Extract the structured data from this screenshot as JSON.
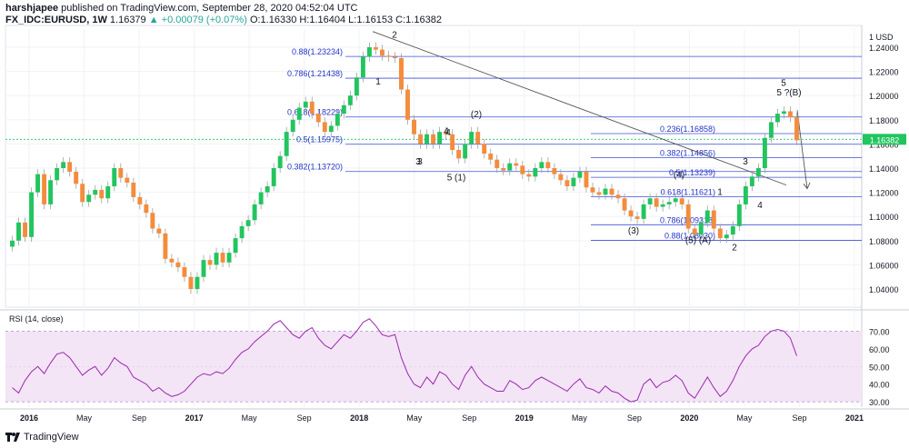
{
  "header": {
    "publisher": "harshjapee",
    "published_text": "published on TradingView.com, September 28, 2020 04:52:04 UTC",
    "symbol": "FX_IDC:EURUSD, 1W",
    "last": "1.16379",
    "change_text": "▲ +0.00079 (+0.07%)",
    "ohlc_label": "O:1.16330 H:1.16404 L:1.16153 C:1.16382"
  },
  "footer": {
    "brand": "TradingView"
  },
  "chart_data": [
    {
      "type": "candlestick",
      "title": "FX_IDC:EURUSD, 1W",
      "price_axis": {
        "unit_label": "1 USD",
        "ticks": [
          "1.24000",
          "1.22000",
          "1.20000",
          "1.18000",
          "1.16000",
          "1.14000",
          "1.12000",
          "1.10000",
          "1.08000",
          "1.06000",
          "1.04000"
        ],
        "range": [
          1.025,
          1.255
        ]
      },
      "time_axis": {
        "labels": [
          "2016",
          "May",
          "Sep",
          "2017",
          "May",
          "Sep",
          "2018",
          "May",
          "Sep",
          "2019",
          "May",
          "Sep",
          "2020",
          "May",
          "Sep",
          "2021"
        ]
      },
      "current_price_label": "1.16382",
      "up_color": "#22c55e",
      "down_color": "#f48c3c",
      "close_series": [
        1.08,
        1.095,
        1.083,
        1.12,
        1.135,
        1.11,
        1.13,
        1.14,
        1.145,
        1.137,
        1.127,
        1.112,
        1.118,
        1.122,
        1.115,
        1.125,
        1.14,
        1.132,
        1.128,
        1.116,
        1.11,
        1.103,
        1.09,
        1.086,
        1.065,
        1.062,
        1.058,
        1.05,
        1.04,
        1.05,
        1.064,
        1.06,
        1.07,
        1.062,
        1.07,
        1.082,
        1.092,
        1.097,
        1.11,
        1.12,
        1.125,
        1.14,
        1.15,
        1.17,
        1.18,
        1.19,
        1.195,
        1.185,
        1.178,
        1.17,
        1.175,
        1.185,
        1.192,
        1.2,
        1.215,
        1.232,
        1.24,
        1.238,
        1.233,
        1.232,
        1.231,
        1.205,
        1.18,
        1.168,
        1.16,
        1.168,
        1.16,
        1.17,
        1.168,
        1.155,
        1.148,
        1.16,
        1.17,
        1.16,
        1.152,
        1.147,
        1.14,
        1.138,
        1.144,
        1.142,
        1.135,
        1.133,
        1.14,
        1.145,
        1.14,
        1.135,
        1.13,
        1.125,
        1.132,
        1.137,
        1.124,
        1.12,
        1.118,
        1.123,
        1.118,
        1.115,
        1.105,
        1.1,
        1.098,
        1.11,
        1.115,
        1.108,
        1.11,
        1.112,
        1.115,
        1.11,
        1.09,
        1.085,
        1.095,
        1.105,
        1.09,
        1.082,
        1.085,
        1.092,
        1.11,
        1.125,
        1.133,
        1.14,
        1.165,
        1.178,
        1.185,
        1.187,
        1.182,
        1.163
      ],
      "fib_levels": [
        {
          "ratio": "0.88",
          "price": "1.23234",
          "label": "0.88(1.23234)"
        },
        {
          "ratio": "0.786",
          "price": "1.21438",
          "label": "0.786(1.21438)"
        },
        {
          "ratio": "0.618",
          "price": "1.18229",
          "label": "0.618(1.18229)"
        },
        {
          "ratio": "0.5",
          "price": "1.15975",
          "label": "0.5(1.15975)"
        },
        {
          "ratio": "0.382",
          "price": "1.13720",
          "label": "0.382(1.13720)"
        },
        {
          "ratio": "0.236",
          "price": "1.16858",
          "label": "0.236(1.16858)"
        },
        {
          "ratio": "0.382",
          "price": "1.14856",
          "label": "0.382(1.14856)"
        },
        {
          "ratio": "0.5",
          "price": "1.13239",
          "label": "0.5(1.13239)"
        },
        {
          "ratio": "0.618",
          "price": "1.11621",
          "label": "0.618(1.11621)"
        },
        {
          "ratio": "0.786",
          "price": "1.09318",
          "label": "0.786(1.09318)"
        },
        {
          "ratio": "0.88",
          "price": "1.08030",
          "label": "0.88(1.08030)"
        }
      ],
      "wave_labels": [
        "1",
        "2",
        "3",
        "4",
        "5 (1)",
        "(2)",
        "3",
        "4",
        "5",
        "(3)",
        "(4)",
        "(5) (A)",
        "1",
        "2",
        "3",
        "4",
        "5 ?(B)"
      ]
    },
    {
      "type": "line",
      "title": "RSI (14, close)",
      "y_ticks": [
        "70.00",
        "60.00",
        "50.00",
        "40.00",
        "30.00"
      ],
      "range": [
        27,
        80
      ],
      "band": [
        30,
        70
      ],
      "line_color": "#9c27b0",
      "values": [
        38,
        35,
        42,
        47,
        50,
        46,
        52,
        57,
        58,
        55,
        50,
        45,
        48,
        50,
        45,
        49,
        55,
        52,
        50,
        44,
        42,
        40,
        36,
        38,
        35,
        33,
        34,
        36,
        40,
        44,
        46,
        45,
        47,
        46,
        49,
        54,
        58,
        60,
        64,
        67,
        70,
        74,
        76,
        72,
        68,
        66,
        70,
        72,
        66,
        62,
        60,
        64,
        68,
        66,
        70,
        75,
        77,
        73,
        68,
        67,
        68,
        55,
        46,
        40,
        38,
        44,
        40,
        47,
        45,
        40,
        37,
        45,
        50,
        44,
        40,
        38,
        36,
        36,
        42,
        40,
        37,
        38,
        42,
        44,
        42,
        40,
        38,
        36,
        40,
        43,
        38,
        37,
        35,
        39,
        36,
        35,
        32,
        30,
        31,
        40,
        43,
        38,
        41,
        42,
        45,
        42,
        35,
        32,
        38,
        44,
        38,
        33,
        36,
        42,
        50,
        56,
        60,
        62,
        67,
        70,
        71,
        70,
        66,
        56
      ]
    }
  ]
}
